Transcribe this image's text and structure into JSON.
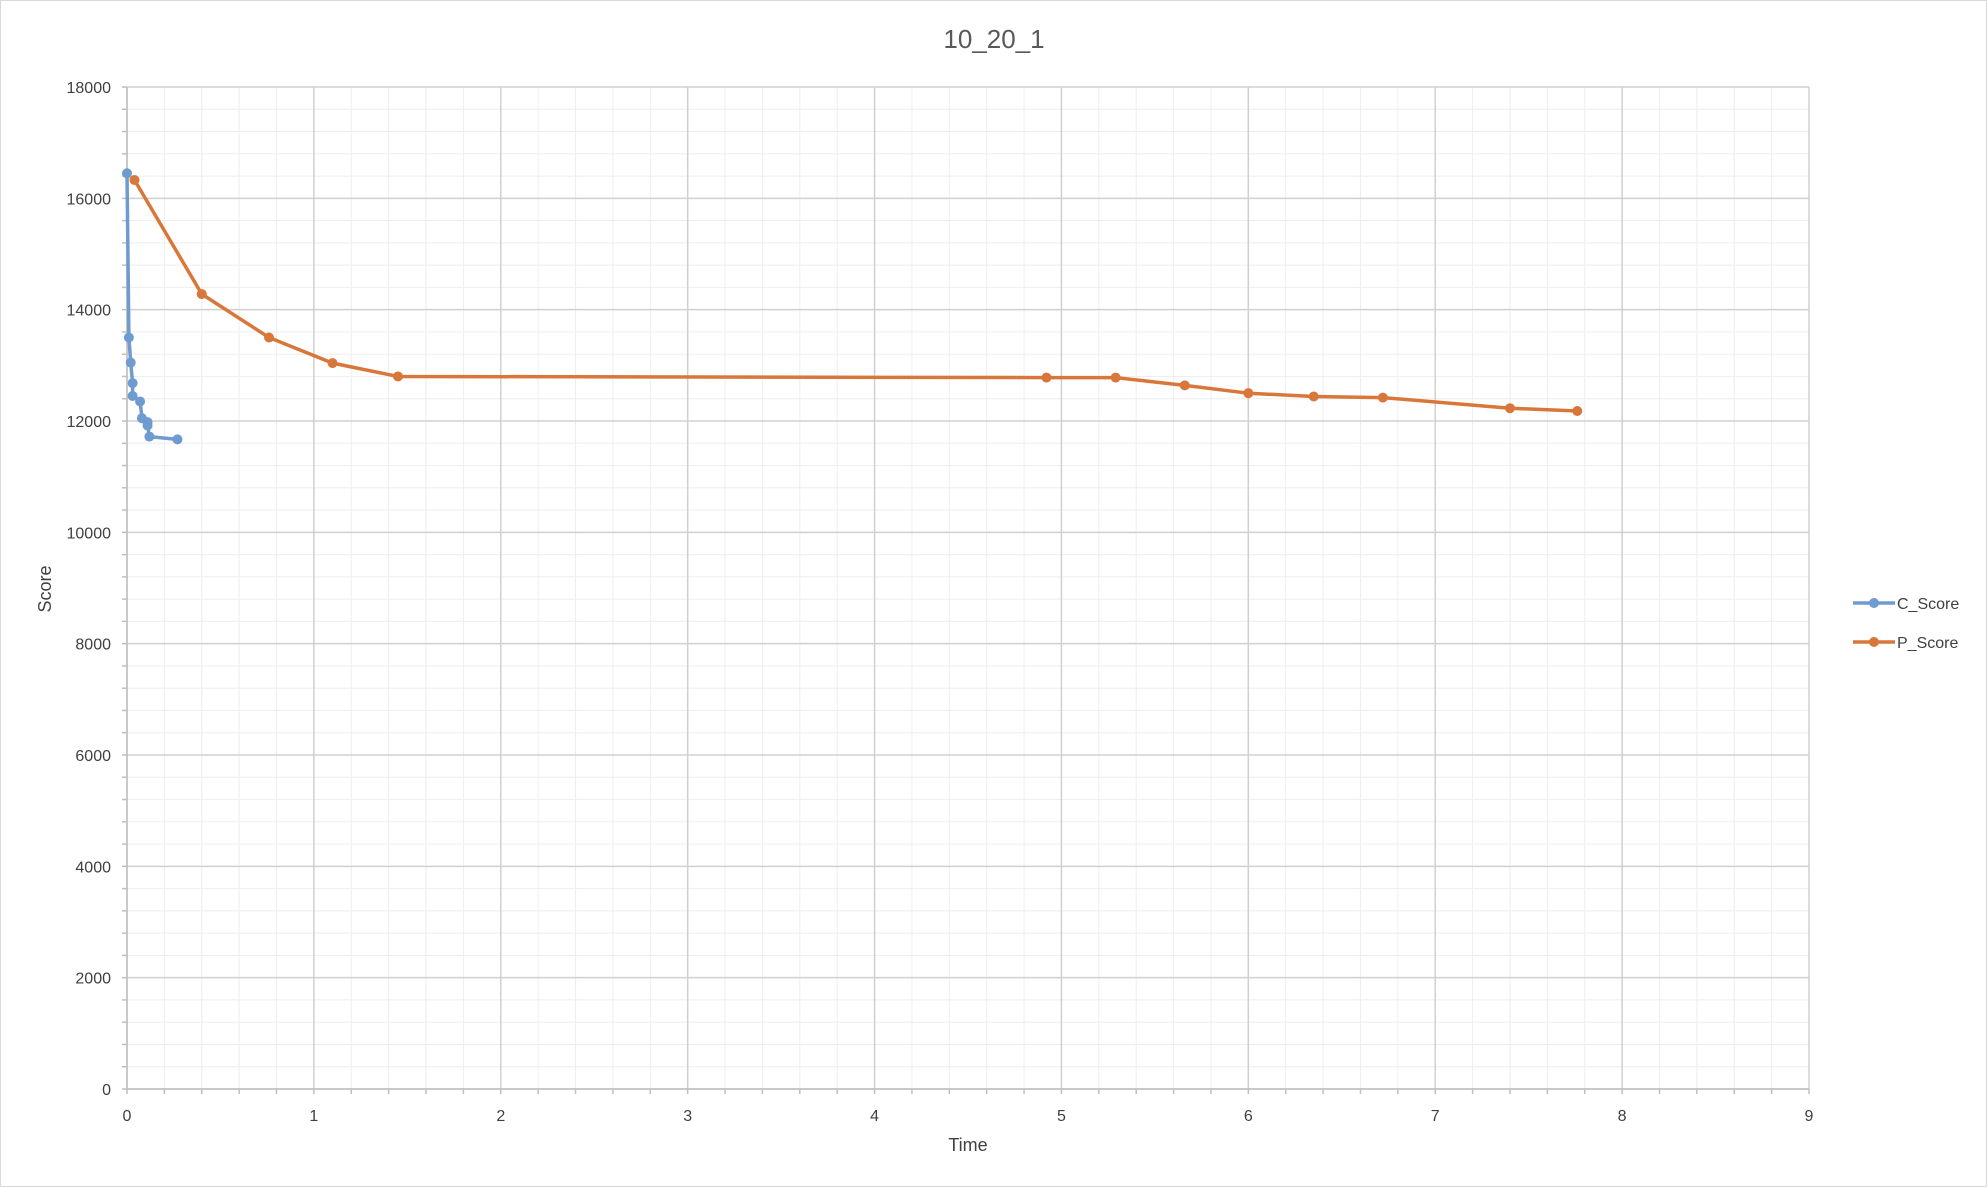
{
  "chart_data": {
    "type": "scatter",
    "title": "10_20_1",
    "xlabel": "Time",
    "ylabel": "Score",
    "xlim": [
      0,
      9
    ],
    "ylim": [
      0,
      18000
    ],
    "x_ticks": [
      0,
      1,
      2,
      3,
      4,
      5,
      6,
      7,
      8,
      9
    ],
    "y_ticks": [
      0,
      2000,
      4000,
      6000,
      8000,
      10000,
      12000,
      14000,
      16000,
      18000
    ],
    "x_minor_step": 0.2,
    "y_minor_step": 400,
    "grid": true,
    "legend_position": "right",
    "series": [
      {
        "name": "C_Score",
        "color": "#6f9bd1",
        "points": [
          [
            0.0,
            16450
          ],
          [
            0.01,
            13500
          ],
          [
            0.02,
            13050
          ],
          [
            0.03,
            12680
          ],
          [
            0.03,
            12450
          ],
          [
            0.07,
            12350
          ],
          [
            0.08,
            12050
          ],
          [
            0.11,
            11980
          ],
          [
            0.11,
            11920
          ],
          [
            0.12,
            11720
          ],
          [
            0.27,
            11670
          ]
        ]
      },
      {
        "name": "P_Score",
        "color": "#d9773a",
        "points": [
          [
            0.04,
            16330
          ],
          [
            0.4,
            14280
          ],
          [
            0.76,
            13500
          ],
          [
            1.1,
            13040
          ],
          [
            1.45,
            12800
          ],
          [
            4.92,
            12780
          ],
          [
            5.29,
            12780
          ],
          [
            5.66,
            12640
          ],
          [
            6.0,
            12500
          ],
          [
            6.35,
            12440
          ],
          [
            6.72,
            12420
          ],
          [
            7.4,
            12230
          ],
          [
            7.76,
            12180
          ]
        ]
      }
    ]
  }
}
